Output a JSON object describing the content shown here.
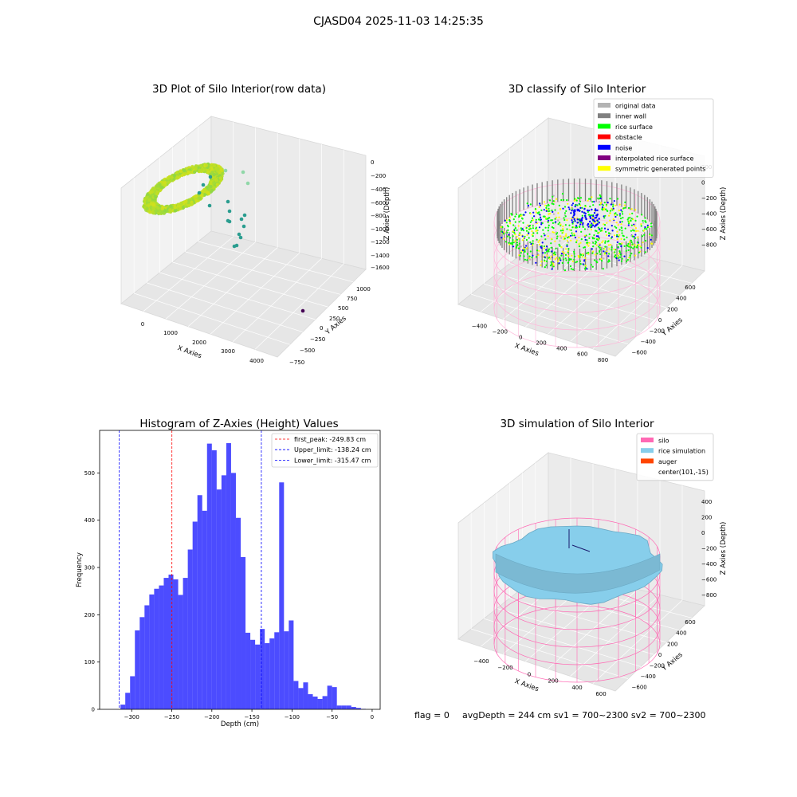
{
  "suptitle": "CJASD04 2025-11-03 14:25:35",
  "footer": {
    "flag": "flag = 0",
    "avg": "avgDepth = 244 cm  sv1 = 700~2300  sv2 = 700~2300"
  },
  "colors": {
    "hist_bar": "#0000ff",
    "first_peak": "#ff0000",
    "limits": "#0000ff",
    "silo": "#ff69b4",
    "rice_sim": "#87ceeb",
    "auger": "#ff4500",
    "rice_surface": "#00ff00",
    "noise": "#0000ff",
    "inner_wall": "#808080",
    "symmetric": "#ffff00"
  },
  "chart_data": [
    {
      "type": "scatter",
      "projection": "3d",
      "title": "3D Plot of Silo Interior(row data)",
      "xlabel": "X Axies",
      "ylabel": "Y Axies",
      "zlabel": "Z Axies (Depth)",
      "x_ticks": [
        "0",
        "1000",
        "2000",
        "3000",
        "4000"
      ],
      "y_ticks": [
        "−750",
        "−500",
        "−250",
        "0",
        "250",
        "500",
        "750",
        "1000"
      ],
      "z_ticks": [
        "0",
        "−200",
        "−400",
        "−600",
        "−800",
        "−1000",
        "−1200",
        "−1400",
        "−1600"
      ],
      "colormap": "viridis"
    },
    {
      "type": "scatter",
      "projection": "3d",
      "title": "3D classify of Silo Interior",
      "xlabel": "X Axies",
      "ylabel": "Y Axies",
      "zlabel": "Z Axies (Depth)",
      "x_ticks": [
        "−400",
        "−200",
        "0",
        "200",
        "400",
        "600",
        "800"
      ],
      "y_ticks": [
        "−600",
        "−400",
        "−200",
        "0",
        "200",
        "400",
        "600"
      ],
      "z_ticks": [
        "200",
        "0",
        "−200",
        "−400",
        "−600",
        "−800"
      ],
      "legend": [
        {
          "label": "original data",
          "color": "#b3b3b3"
        },
        {
          "label": "inner wall",
          "color": "#808080"
        },
        {
          "label": "rice surface",
          "color": "#00ff00"
        },
        {
          "label": "obstacle",
          "color": "#ff0000"
        },
        {
          "label": "noise",
          "color": "#0000ff"
        },
        {
          "label": "interpolated rice surface",
          "color": "#800080"
        },
        {
          "label": "symmetric generated points",
          "color": "#ffff00"
        }
      ],
      "legend_placement": "top-right"
    },
    {
      "type": "bar",
      "title": "Histogram of Z-Axies (Height) Values",
      "xlabel": "Depth (cm)",
      "ylabel": "Frequency",
      "xlim": [
        -340,
        10
      ],
      "ylim": [
        0,
        590
      ],
      "bin_width": 6,
      "bin_start": -314,
      "values": [
        10,
        35,
        70,
        167,
        195,
        220,
        243,
        255,
        262,
        278,
        285,
        275,
        242,
        278,
        338,
        397,
        453,
        420,
        562,
        548,
        465,
        495,
        563,
        500,
        405,
        322,
        162,
        147,
        137,
        170,
        140,
        150,
        163,
        480,
        165,
        188,
        60,
        45,
        57,
        32,
        27,
        22,
        28,
        50,
        47,
        8,
        8,
        8,
        5,
        3,
        1
      ],
      "x_ticks": [
        -300,
        -250,
        -200,
        -150,
        -100,
        -50,
        0
      ],
      "x_tick_labels": [
        "−300",
        "−250",
        "−200",
        "−150",
        "−100",
        "−50",
        "0"
      ],
      "y_ticks": [
        0,
        100,
        200,
        300,
        400,
        500
      ],
      "vlines": [
        {
          "x": -249.83,
          "label": "first_peak: -249.83 cm",
          "color": "#ff0000"
        },
        {
          "x": -138.24,
          "label": "Upper_limit: -138.24 cm",
          "color": "#0000ff"
        },
        {
          "x": -315.47,
          "label": "Lower_limit: -315.47 cm",
          "color": "#0000ff"
        }
      ],
      "legend_placement": "top-right"
    },
    {
      "type": "surface",
      "projection": "3d",
      "title": "3D simulation of Silo Interior",
      "xlabel": "X Axies",
      "ylabel": "Y Axies",
      "zlabel": "Z Axies (Depth)",
      "x_ticks": [
        "−400",
        "−200",
        "0",
        "200",
        "400",
        "600"
      ],
      "y_ticks": [
        "−600",
        "−400",
        "−200",
        "0",
        "200",
        "400",
        "600"
      ],
      "z_ticks": [
        "400",
        "200",
        "0",
        "−200",
        "−400",
        "−600",
        "−800"
      ],
      "legend": [
        {
          "label": "silo",
          "color": "#ff69b4"
        },
        {
          "label": "rice simulation",
          "color": "#87ceeb"
        },
        {
          "label": "auger",
          "color": "#ff4500"
        },
        {
          "label": "center(101,-15)",
          "color": ""
        }
      ],
      "legend_placement": "top-right"
    }
  ]
}
